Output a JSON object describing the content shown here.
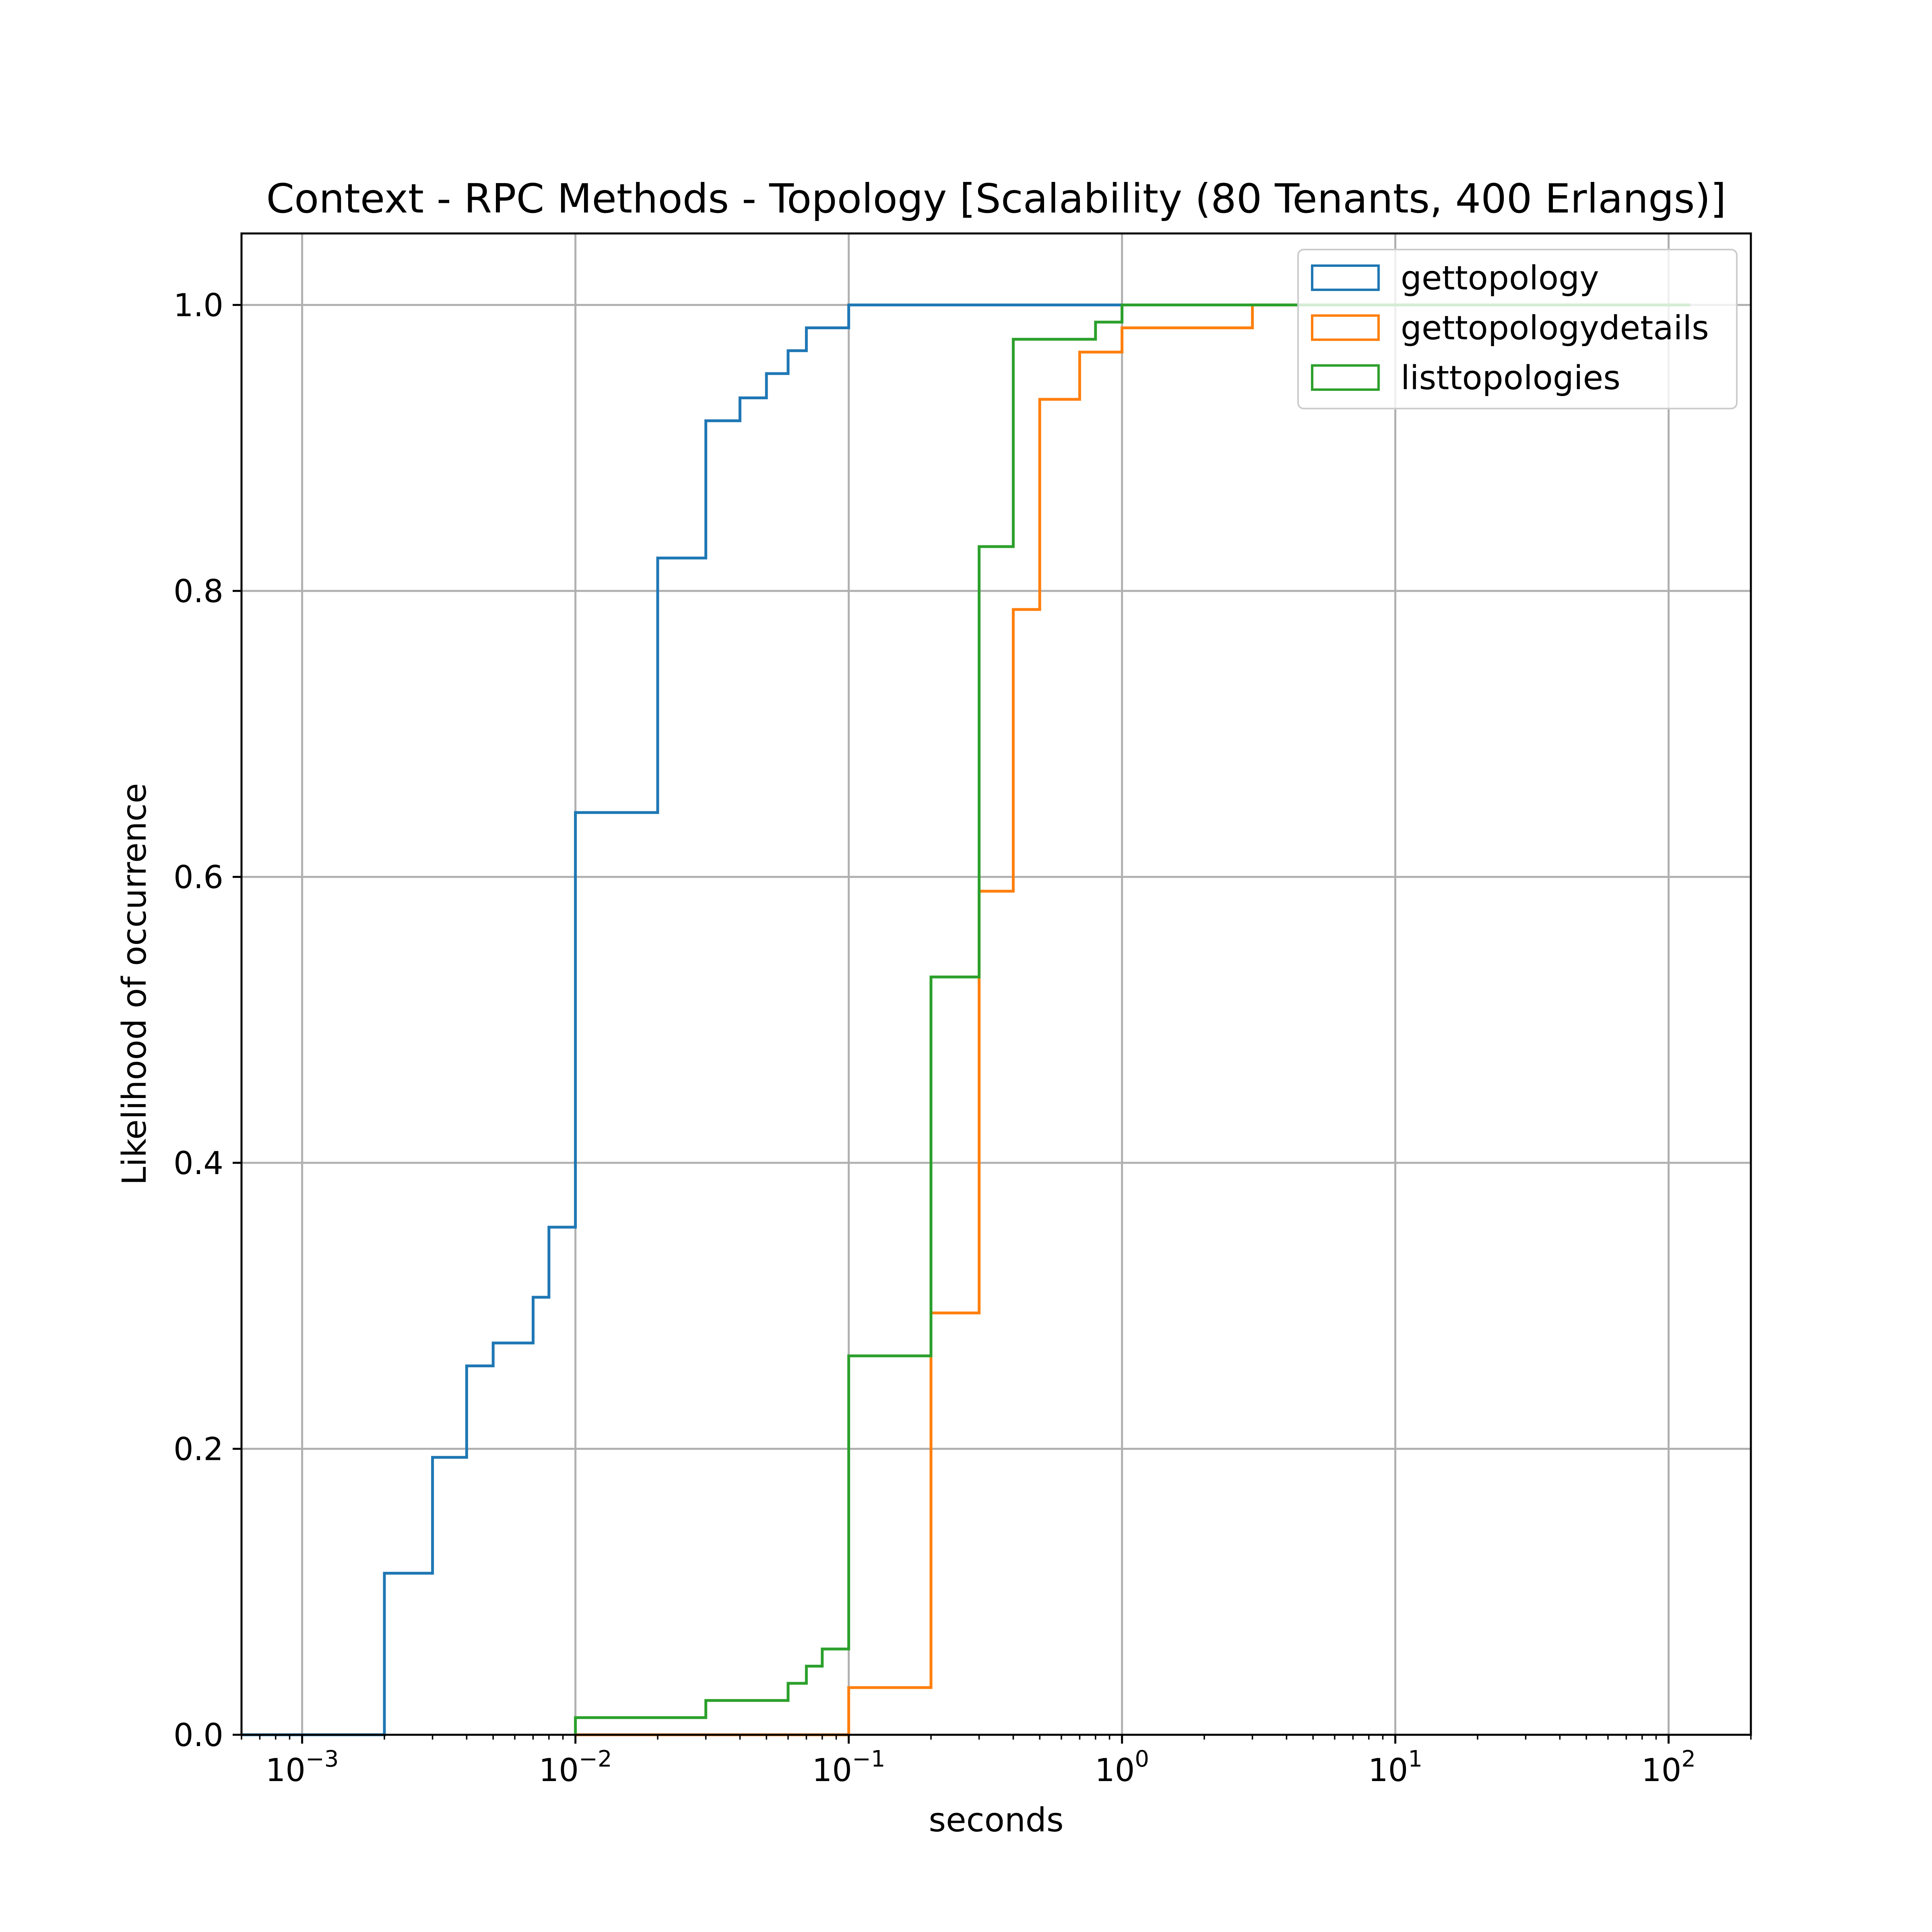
{
  "chart_data": {
    "type": "line",
    "subtype": "cumulative step histogram",
    "title": "Context - RPC Methods - Topology [Scalability (80 Tenants, 400 Erlangs)]",
    "xlabel": "seconds",
    "ylabel": "Likelihood of occurrence",
    "xscale": "log",
    "xlim": [
      0.0006,
      200
    ],
    "ylim": [
      0.0,
      1.05
    ],
    "x_ticks": [
      {
        "value": 0.001,
        "base": "10",
        "exp": "−3"
      },
      {
        "value": 0.01,
        "base": "10",
        "exp": "−2"
      },
      {
        "value": 0.1,
        "base": "10",
        "exp": "−1"
      },
      {
        "value": 1,
        "base": "10",
        "exp": "0"
      },
      {
        "value": 10,
        "base": "10",
        "exp": "1"
      },
      {
        "value": 100,
        "base": "10",
        "exp": "2"
      }
    ],
    "y_ticks": [
      {
        "value": 0.0,
        "label": "0.0"
      },
      {
        "value": 0.2,
        "label": "0.2"
      },
      {
        "value": 0.4,
        "label": "0.4"
      },
      {
        "value": 0.6,
        "label": "0.6"
      },
      {
        "value": 0.8,
        "label": "0.8"
      },
      {
        "value": 1.0,
        "label": "1.0"
      }
    ],
    "grid": true,
    "legend_position": "top-right",
    "series": [
      {
        "name": "gettopology",
        "color": "#1f77b4",
        "x": [
          0.0006,
          0.002,
          0.003,
          0.004,
          0.005,
          0.007,
          0.008,
          0.01,
          0.02,
          0.03,
          0.04,
          0.05,
          0.06,
          0.07,
          0.1,
          1
        ],
        "y": [
          0.0,
          0.113,
          0.194,
          0.258,
          0.274,
          0.306,
          0.355,
          0.645,
          0.823,
          0.919,
          0.935,
          0.952,
          0.968,
          0.984,
          1.0,
          1.0
        ]
      },
      {
        "name": "gettopologydetails",
        "color": "#ff7f0e",
        "x": [
          0.01,
          0.1,
          0.2,
          0.3,
          0.4,
          0.5,
          0.7,
          1,
          3,
          120
        ],
        "y": [
          0.0,
          0.033,
          0.295,
          0.59,
          0.787,
          0.934,
          0.967,
          0.984,
          1.0,
          1.0
        ]
      },
      {
        "name": "listtopologies",
        "color": "#2ca02c",
        "x": [
          0.01,
          0.03,
          0.06,
          0.07,
          0.08,
          0.1,
          0.2,
          0.3,
          0.4,
          0.8,
          1,
          120
        ],
        "y": [
          0.012,
          0.024,
          0.036,
          0.048,
          0.06,
          0.265,
          0.53,
          0.831,
          0.976,
          0.988,
          1.0,
          1.0
        ]
      }
    ]
  }
}
